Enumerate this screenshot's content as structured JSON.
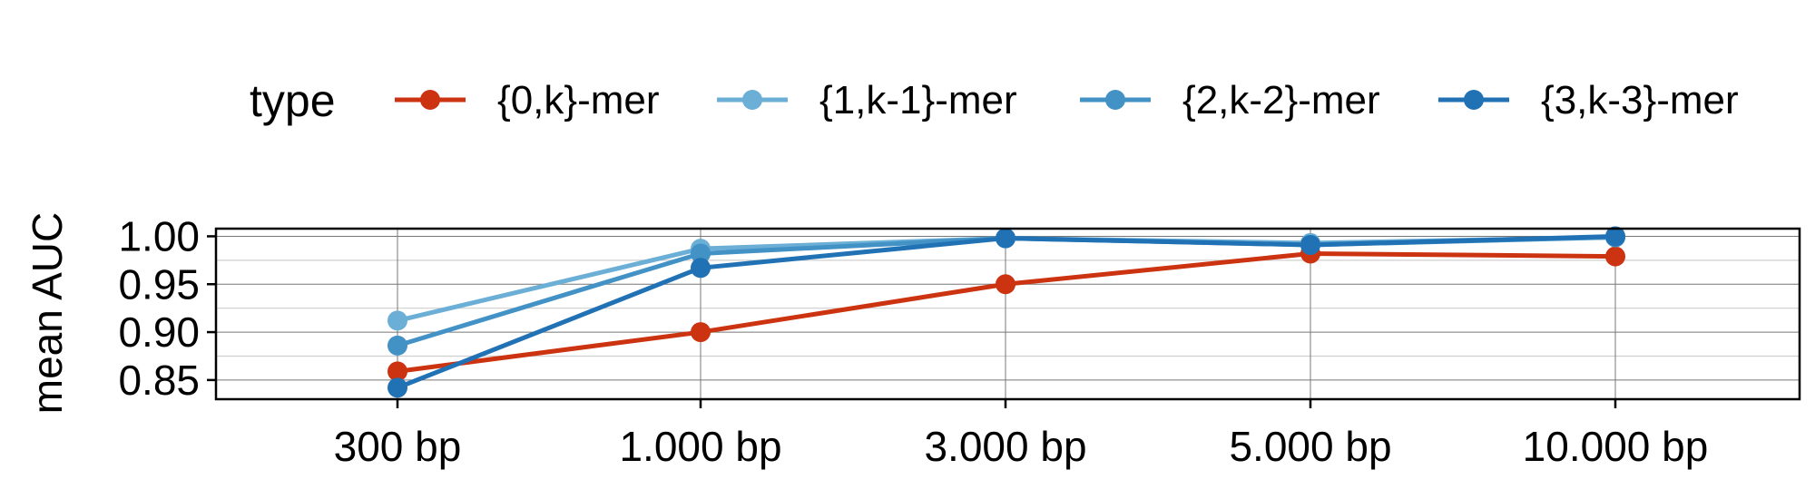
{
  "chart_data": {
    "type": "line",
    "title": "",
    "xlabel": "",
    "ylabel": "mean AUC",
    "categories": [
      "300 bp",
      "1.000 bp",
      "3.000 bp",
      "5.000 bp",
      "10.000 bp"
    ],
    "ylim": [
      0.83,
      1.008
    ],
    "yticks": [
      "0.85",
      "0.90",
      "0.95",
      "1.00"
    ],
    "grid": true,
    "legend": {
      "title": "type",
      "position": "top"
    },
    "series": [
      {
        "name": "{0,k}-mer",
        "color": "#cc3311",
        "values": [
          0.859,
          0.9,
          0.95,
          0.982,
          0.979
        ]
      },
      {
        "name": "{1,k-1}-mer",
        "color": "#6baed6",
        "values": [
          0.912,
          0.987,
          0.998,
          0.993,
          0.999
        ]
      },
      {
        "name": "{2,k-2}-mer",
        "color": "#4292c6",
        "values": [
          0.886,
          0.982,
          0.998,
          0.991,
          0.999
        ]
      },
      {
        "name": "{3,k-3}-mer",
        "color": "#2171b5",
        "values": [
          0.842,
          0.967,
          0.998,
          0.991,
          1.0
        ]
      }
    ]
  }
}
